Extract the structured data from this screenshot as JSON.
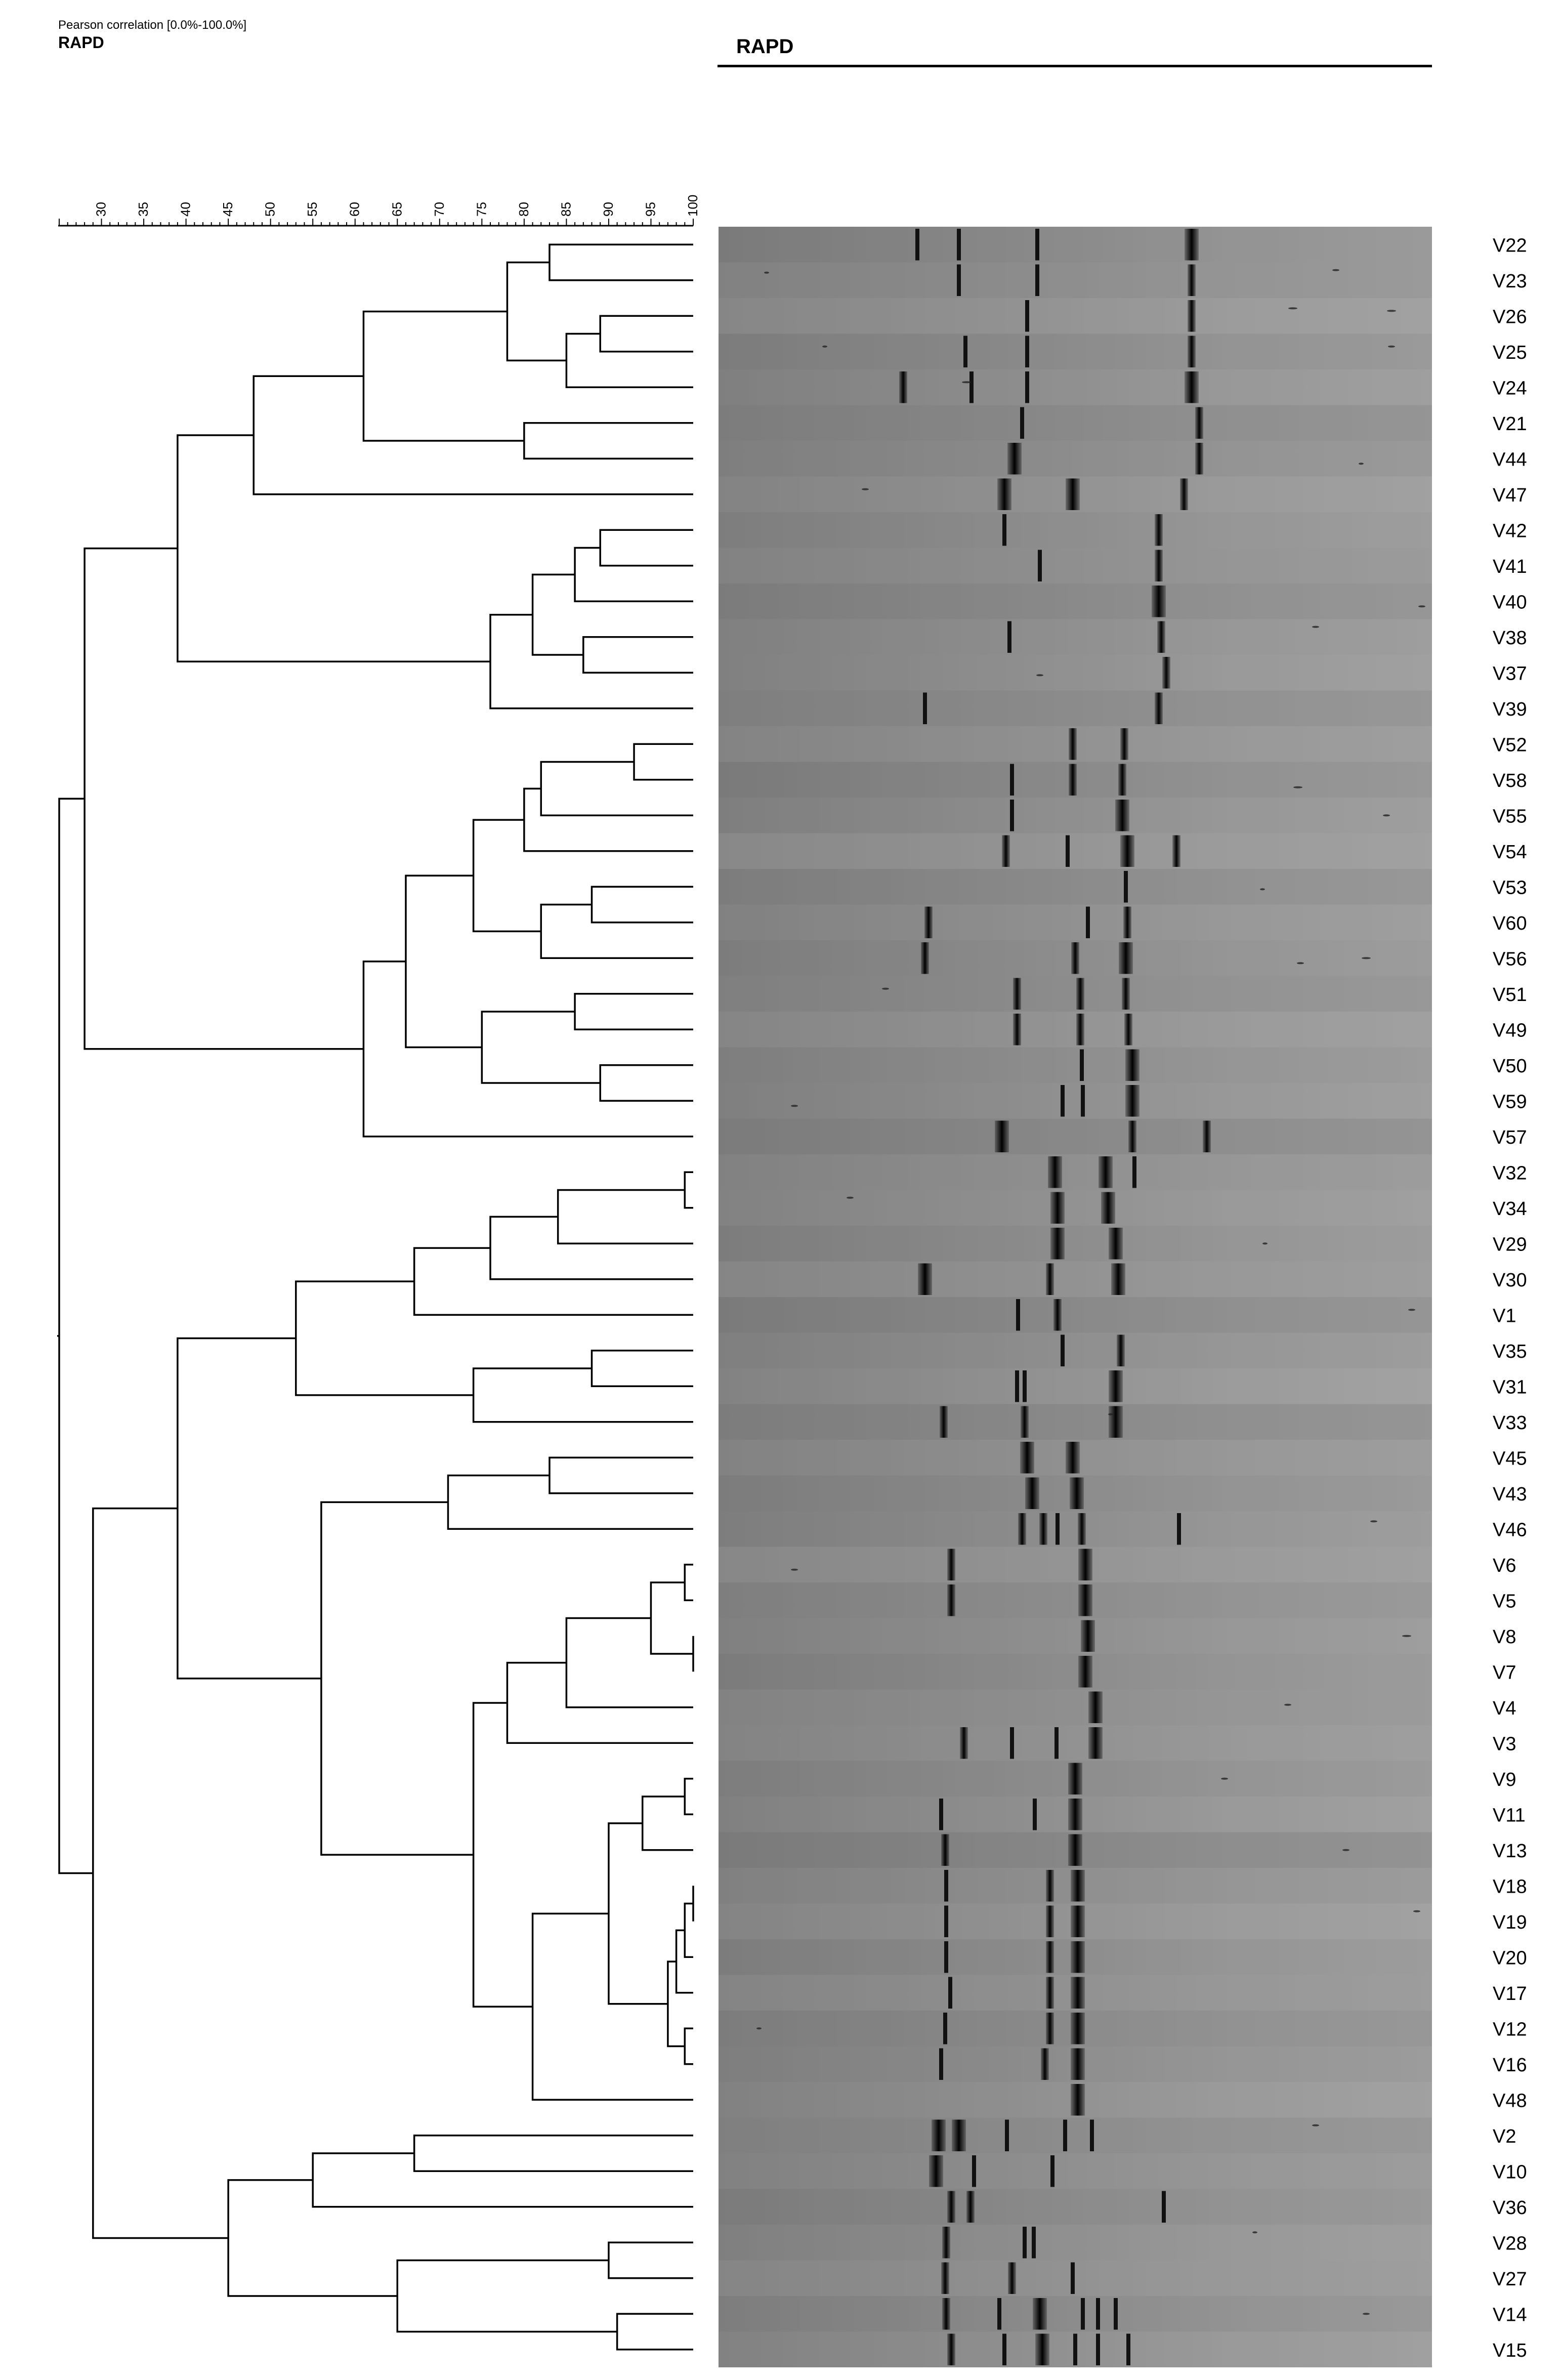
{
  "header": {
    "scale_caption": "Pearson correlation [0.0%-100.0%]",
    "experiment_label": "RAPD",
    "gel_title": "RAPD"
  },
  "scale": {
    "ticks": [
      30,
      35,
      40,
      45,
      50,
      55,
      60,
      65,
      70,
      75,
      80,
      85,
      90,
      95,
      100
    ],
    "min": 25,
    "max": 100
  },
  "lanes": [
    "V22",
    "V23",
    "V26",
    "V25",
    "V24",
    "V21",
    "V44",
    "V47",
    "V42",
    "V41",
    "V40",
    "V38",
    "V37",
    "V39",
    "V52",
    "V58",
    "V55",
    "V54",
    "V53",
    "V60",
    "V56",
    "V51",
    "V49",
    "V50",
    "V59",
    "V57",
    "V32",
    "V34",
    "V29",
    "V30",
    "V1",
    "V35",
    "V31",
    "V33",
    "V45",
    "V43",
    "V46",
    "V6",
    "V5",
    "V8",
    "V7",
    "V4",
    "V3",
    "V9",
    "V11",
    "V13",
    "V18",
    "V19",
    "V20",
    "V17",
    "V12",
    "V16",
    "V48",
    "V2",
    "V10",
    "V36",
    "V28",
    "V27",
    "V14",
    "V15"
  ],
  "dendrogram": [
    [
      "n1",
      "V22",
      "V23",
      83
    ],
    [
      "n2",
      "V26",
      "V25",
      89
    ],
    [
      "n3",
      "n2",
      "V24",
      85
    ],
    [
      "n4",
      "n1",
      "n3",
      78
    ],
    [
      "n5",
      "V21",
      "V44",
      80
    ],
    [
      "n6",
      "n4",
      "n5",
      61
    ],
    [
      "n7",
      "n6",
      "V47",
      48
    ],
    [
      "n8",
      "V42",
      "V41",
      89
    ],
    [
      "n9",
      "n8",
      "V40",
      86
    ],
    [
      "n10",
      "V38",
      "V37",
      87
    ],
    [
      "n11",
      "n9",
      "n10",
      81
    ],
    [
      "n12",
      "n11",
      "V39",
      76
    ],
    [
      "n13",
      "n7",
      "n12",
      39
    ],
    [
      "n14",
      "V52",
      "V58",
      93
    ],
    [
      "n15",
      "n14",
      "V55",
      82
    ],
    [
      "n16",
      "n15",
      "V54",
      80
    ],
    [
      "n17",
      "V53",
      "V60",
      88
    ],
    [
      "n18",
      "n17",
      "V56",
      82
    ],
    [
      "n19",
      "n16",
      "n18",
      74
    ],
    [
      "n20",
      "V51",
      "V49",
      86
    ],
    [
      "n21",
      "V50",
      "V59",
      89
    ],
    [
      "n22",
      "n20",
      "n21",
      75
    ],
    [
      "n23",
      "n19",
      "n22",
      66
    ],
    [
      "n24",
      "n23",
      "V57",
      61
    ],
    [
      "n25",
      "n13",
      "n24",
      28
    ],
    [
      "n26",
      "V32",
      "V34",
      99
    ],
    [
      "n27",
      "n26",
      "V29",
      84
    ],
    [
      "n28",
      "n27",
      "V30",
      76
    ],
    [
      "n29",
      "n28",
      "V1",
      67
    ],
    [
      "n30",
      "V35",
      "V31",
      88
    ],
    [
      "n31",
      "n30",
      "V33",
      74
    ],
    [
      "n32",
      "n29",
      "n31",
      53
    ],
    [
      "n33",
      "V45",
      "V43",
      83
    ],
    [
      "n34",
      "n33",
      "V46",
      71
    ],
    [
      "n35",
      "V6",
      "V5",
      99
    ],
    [
      "n36",
      "V8",
      "V7",
      100
    ],
    [
      "n37",
      "n35",
      "n36",
      95
    ],
    [
      "n38",
      "n37",
      "V4",
      85
    ],
    [
      "n39",
      "n38",
      "V3",
      78
    ],
    [
      "n40",
      "V9",
      "V11",
      99
    ],
    [
      "n41",
      "n40",
      "V13",
      94
    ],
    [
      "n42",
      "V18",
      "V19",
      100
    ],
    [
      "n43",
      "n42",
      "V20",
      99
    ],
    [
      "n44",
      "n43",
      "V17",
      98
    ],
    [
      "n45",
      "V12",
      "V16",
      99
    ],
    [
      "n46",
      "n44",
      "n45",
      97
    ],
    [
      "n47",
      "n41",
      "n46",
      90
    ],
    [
      "n48",
      "n47",
      "V48",
      81
    ],
    [
      "n49",
      "n39",
      "n48",
      74
    ],
    [
      "n50",
      "n34",
      "n49",
      56
    ],
    [
      "n51",
      "n32",
      "n50",
      39
    ],
    [
      "n52",
      "V2",
      "V10",
      67
    ],
    [
      "n53",
      "n52",
      "V36",
      55
    ],
    [
      "n54",
      "V28",
      "V27",
      90
    ],
    [
      "n55",
      "V14",
      "V15",
      91
    ],
    [
      "n56",
      "n54",
      "n55",
      65
    ],
    [
      "n57",
      "n53",
      "n56",
      45
    ],
    [
      "n58",
      "n51",
      "n57",
      29
    ],
    [
      "n59",
      "n25",
      "n58",
      25
    ]
  ],
  "gel": {
    "bands": [
      [
        [
          1813,
          1
        ],
        [
          1895,
          1
        ],
        [
          2050,
          1
        ],
        [
          2355,
          3
        ]
      ],
      [
        [
          1895,
          1
        ],
        [
          2050,
          1
        ],
        [
          2355,
          2
        ]
      ],
      [
        [
          2030,
          1
        ],
        [
          2355,
          2
        ]
      ],
      [
        [
          1908,
          1
        ],
        [
          2030,
          1
        ],
        [
          2355,
          2
        ]
      ],
      [
        [
          1785,
          2
        ],
        [
          1920,
          1
        ],
        [
          2030,
          1
        ],
        [
          2355,
          3
        ]
      ],
      [
        [
          2020,
          1
        ],
        [
          2370,
          2
        ]
      ],
      [
        [
          2005,
          3
        ],
        [
          2370,
          2
        ]
      ],
      [
        [
          1985,
          3
        ],
        [
          2120,
          3
        ],
        [
          2340,
          2
        ]
      ],
      [
        [
          1985,
          1
        ],
        [
          2290,
          2
        ]
      ],
      [
        [
          2055,
          1
        ],
        [
          2290,
          2
        ]
      ],
      [
        [
          2290,
          3
        ]
      ],
      [
        [
          1995,
          1
        ],
        [
          2295,
          2
        ]
      ],
      [
        [
          2305,
          2
        ]
      ],
      [
        [
          1828,
          1
        ],
        [
          2290,
          2
        ]
      ],
      [
        [
          2120,
          2
        ],
        [
          2222,
          2
        ]
      ],
      [
        [
          2000,
          1
        ],
        [
          2120,
          2
        ],
        [
          2218,
          2
        ]
      ],
      [
        [
          2000,
          1
        ],
        [
          2218,
          3
        ]
      ],
      [
        [
          1988,
          2
        ],
        [
          2110,
          1
        ],
        [
          2228,
          3
        ],
        [
          2325,
          2
        ]
      ],
      [
        [
          2225,
          1
        ]
      ],
      [
        [
          1835,
          2
        ],
        [
          2150,
          1
        ],
        [
          2228,
          2
        ]
      ],
      [
        [
          1828,
          2
        ],
        [
          2125,
          2
        ],
        [
          2225,
          3
        ]
      ],
      [
        [
          2010,
          2
        ],
        [
          2135,
          2
        ],
        [
          2225,
          2
        ]
      ],
      [
        [
          2010,
          2
        ],
        [
          2135,
          2
        ],
        [
          2230,
          2
        ]
      ],
      [
        [
          2138,
          1
        ],
        [
          2238,
          3
        ]
      ],
      [
        [
          2100,
          1
        ],
        [
          2140,
          1
        ],
        [
          2238,
          3
        ]
      ],
      [
        [
          1980,
          3
        ],
        [
          2238,
          2
        ],
        [
          2385,
          2
        ]
      ],
      [
        [
          2085,
          3
        ],
        [
          2185,
          3
        ],
        [
          2242,
          1
        ]
      ],
      [
        [
          2090,
          3
        ],
        [
          2190,
          3
        ]
      ],
      [
        [
          2090,
          3
        ],
        [
          2205,
          3
        ]
      ],
      [
        [
          1828,
          3
        ],
        [
          2075,
          2
        ],
        [
          2210,
          3
        ]
      ],
      [
        [
          2012,
          1
        ],
        [
          2090,
          2
        ]
      ],
      [
        [
          2100,
          1
        ],
        [
          2215,
          2
        ]
      ],
      [
        [
          2010,
          1
        ],
        [
          2025,
          1
        ],
        [
          2205,
          3
        ]
      ],
      [
        [
          1865,
          2
        ],
        [
          2025,
          2
        ],
        [
          2205,
          3
        ]
      ],
      [
        [
          2030,
          3
        ],
        [
          2120,
          3
        ]
      ],
      [
        [
          2040,
          3
        ],
        [
          2128,
          3
        ]
      ],
      [
        [
          2020,
          2
        ],
        [
          2062,
          2
        ],
        [
          2090,
          1
        ],
        [
          2138,
          2
        ],
        [
          2330,
          1
        ]
      ],
      [
        [
          1880,
          2
        ],
        [
          2145,
          3
        ]
      ],
      [
        [
          1880,
          2
        ],
        [
          2145,
          3
        ]
      ],
      [
        [
          2150,
          3
        ]
      ],
      [
        [
          2145,
          3
        ]
      ],
      [
        [
          2165,
          3
        ]
      ],
      [
        [
          1905,
          2
        ],
        [
          2000,
          1
        ],
        [
          2088,
          1
        ],
        [
          2165,
          3
        ]
      ],
      [
        [
          2125,
          3
        ]
      ],
      [
        [
          1860,
          1
        ],
        [
          2045,
          1
        ],
        [
          2125,
          3
        ]
      ],
      [
        [
          1868,
          2
        ],
        [
          2125,
          3
        ]
      ],
      [
        [
          1870,
          1
        ],
        [
          2075,
          2
        ],
        [
          2130,
          3
        ]
      ],
      [
        [
          1870,
          1
        ],
        [
          2075,
          2
        ],
        [
          2130,
          3
        ]
      ],
      [
        [
          1870,
          1
        ],
        [
          2075,
          2
        ],
        [
          2130,
          3
        ]
      ],
      [
        [
          1878,
          1
        ],
        [
          2075,
          2
        ],
        [
          2130,
          3
        ]
      ],
      [
        [
          1868,
          1
        ],
        [
          2075,
          2
        ],
        [
          2130,
          3
        ]
      ],
      [
        [
          1860,
          1
        ],
        [
          2065,
          2
        ],
        [
          2130,
          3
        ]
      ],
      [
        [
          2130,
          3
        ]
      ],
      [
        [
          1855,
          3
        ],
        [
          1895,
          3
        ],
        [
          1990,
          1
        ],
        [
          2105,
          1
        ],
        [
          2158,
          1
        ]
      ],
      [
        [
          1850,
          3
        ],
        [
          1925,
          1
        ],
        [
          2080,
          1
        ]
      ],
      [
        [
          1880,
          2
        ],
        [
          1918,
          2
        ],
        [
          2300,
          1
        ]
      ],
      [
        [
          1870,
          2
        ],
        [
          2025,
          1
        ],
        [
          2043,
          1
        ]
      ],
      [
        [
          1868,
          2
        ],
        [
          2000,
          2
        ],
        [
          2120,
          1
        ]
      ],
      [
        [
          1870,
          2
        ],
        [
          1975,
          1
        ],
        [
          2055,
          3
        ],
        [
          2140,
          1
        ],
        [
          2170,
          1
        ],
        [
          2205,
          1
        ]
      ],
      [
        [
          1880,
          2
        ],
        [
          1985,
          1
        ],
        [
          2060,
          3
        ],
        [
          2125,
          1
        ],
        [
          2170,
          1
        ],
        [
          2230,
          1
        ]
      ]
    ],
    "specks": [
      [
        1,
        2640,
        2
      ],
      [
        1,
        1515,
        1
      ],
      [
        2,
        2555,
        3
      ],
      [
        2,
        2750,
        3
      ],
      [
        3,
        1630,
        1
      ],
      [
        3,
        2750,
        2
      ],
      [
        4,
        1910,
        3
      ],
      [
        6,
        2690,
        1
      ],
      [
        7,
        1710,
        2
      ],
      [
        10,
        2810,
        2
      ],
      [
        12,
        2055,
        2
      ],
      [
        15,
        2565,
        3
      ],
      [
        16,
        2740,
        2
      ],
      [
        18,
        2495,
        1
      ],
      [
        20,
        2700,
        3
      ],
      [
        20,
        2570,
        2
      ],
      [
        24,
        1570,
        2
      ],
      [
        27,
        1680,
        2
      ],
      [
        30,
        2790,
        2
      ],
      [
        33,
        2195,
        1
      ],
      [
        36,
        2715,
        2
      ],
      [
        37,
        1570,
        2
      ],
      [
        39,
        2780,
        3
      ],
      [
        41,
        2545,
        2
      ],
      [
        43,
        2420,
        2
      ],
      [
        45,
        2660,
        2
      ],
      [
        47,
        2800,
        2
      ],
      [
        50,
        1500,
        1
      ],
      [
        53,
        2600,
        2
      ],
      [
        56,
        2480,
        1
      ],
      [
        58,
        2700,
        2
      ],
      [
        21,
        1750,
        2
      ],
      [
        11,
        2600,
        2
      ],
      [
        28,
        2500,
        1
      ]
    ]
  }
}
